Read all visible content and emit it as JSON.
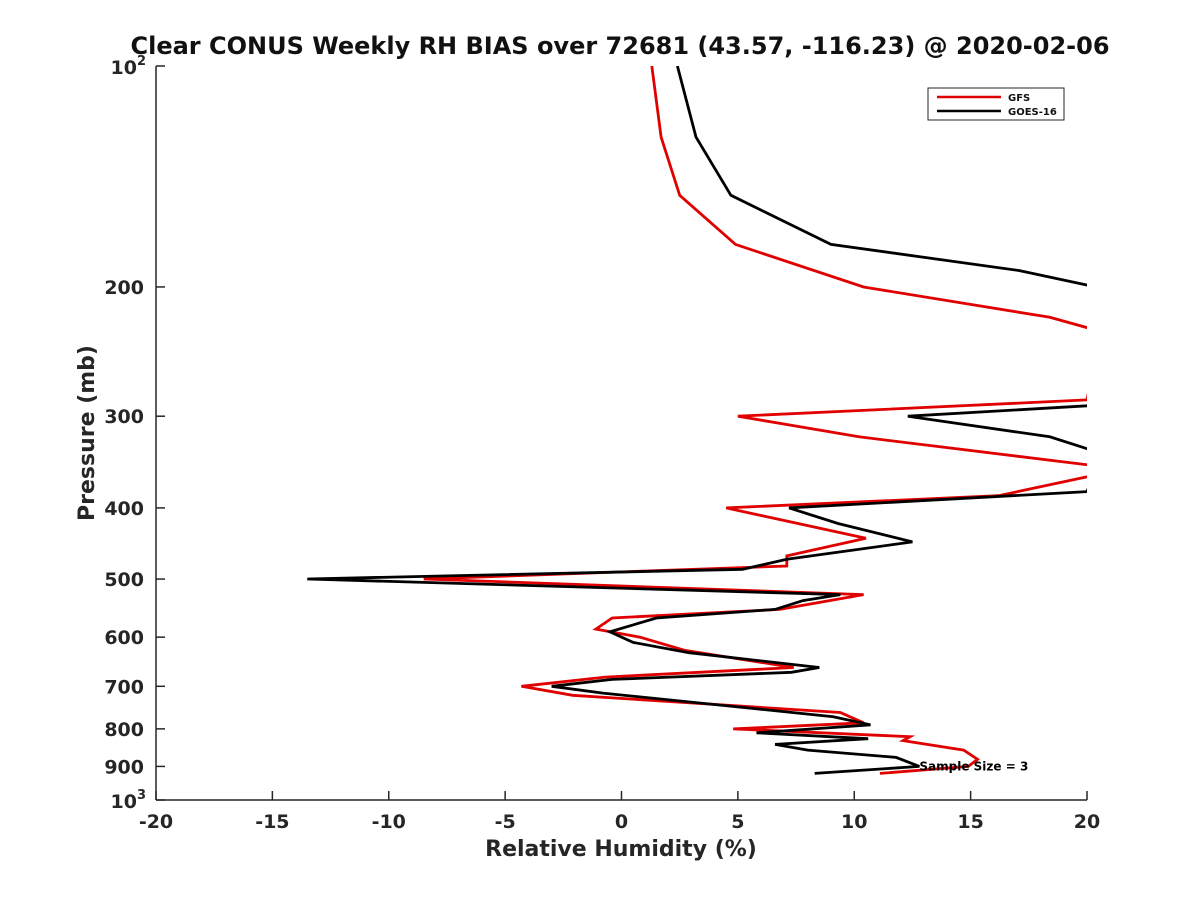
{
  "chart_data": {
    "type": "line",
    "title": "Clear CONUS Weekly RH BIAS over 72681 (43.57, -116.23) @ 2020-02-06",
    "xlabel": "Relative Humidity (%)",
    "ylabel": "Pressure (mb)",
    "xlim": [
      -20,
      20
    ],
    "ylim": [
      100,
      1000
    ],
    "y_scale": "log",
    "y_reversed": true,
    "grid": false,
    "legend_position": "top-right",
    "x_ticks": [
      "-20",
      "-15",
      "-10",
      "-5",
      "0",
      "5",
      "10",
      "15",
      "20"
    ],
    "y_ticks": [
      {
        "value": 100,
        "base": "10",
        "exp": "2"
      },
      {
        "value": 200,
        "label": "200"
      },
      {
        "value": 300,
        "label": "300"
      },
      {
        "value": 400,
        "label": "400"
      },
      {
        "value": 500,
        "label": "500"
      },
      {
        "value": 600,
        "label": "600"
      },
      {
        "value": 700,
        "label": "700"
      },
      {
        "value": 800,
        "label": "800"
      },
      {
        "value": 900,
        "label": "900"
      },
      {
        "value": 1000,
        "base": "10",
        "exp": "3"
      }
    ],
    "annotation": {
      "text": "Sample Size = 3",
      "x": 12.8,
      "y": 900
    },
    "series": [
      {
        "name": "GFS",
        "color": "#e00000",
        "points": [
          [
            1.3,
            100
          ],
          [
            1.7,
            125
          ],
          [
            2.5,
            150
          ],
          [
            4.9,
            175
          ],
          [
            10.4,
            200
          ],
          [
            18.4,
            220
          ],
          [
            20.6,
            230
          ],
          [
            20.0,
            285
          ],
          [
            5.0,
            300
          ],
          [
            10.2,
            320
          ],
          [
            20.2,
            350
          ],
          [
            20.5,
            360
          ],
          [
            16.2,
            385
          ],
          [
            4.5,
            400
          ],
          [
            10.5,
            440
          ],
          [
            7.1,
            465
          ],
          [
            7.1,
            480
          ],
          [
            -8.5,
            500
          ],
          [
            10.4,
            525
          ],
          [
            6.8,
            550
          ],
          [
            -0.4,
            565
          ],
          [
            -1.1,
            585
          ],
          [
            0.8,
            600
          ],
          [
            2.7,
            625
          ],
          [
            7.4,
            660
          ],
          [
            -0.7,
            680
          ],
          [
            -4.3,
            700
          ],
          [
            -2.1,
            720
          ],
          [
            9.4,
            760
          ],
          [
            10.4,
            785
          ],
          [
            4.8,
            800
          ],
          [
            12.4,
            820
          ],
          [
            12.1,
            830
          ],
          [
            14.7,
            855
          ],
          [
            15.3,
            880
          ],
          [
            14.9,
            900
          ],
          [
            11.1,
            920
          ]
        ]
      },
      {
        "name": "GOES-16",
        "color": "#000000",
        "points": [
          [
            2.4,
            100
          ],
          [
            3.2,
            125
          ],
          [
            4.7,
            150
          ],
          [
            9.0,
            175
          ],
          [
            17.1,
            190
          ],
          [
            20.4,
            200
          ],
          [
            20.3,
            290
          ],
          [
            12.3,
            300
          ],
          [
            18.4,
            320
          ],
          [
            21.0,
            340
          ],
          [
            20.2,
            365
          ],
          [
            20.0,
            380
          ],
          [
            7.2,
            400
          ],
          [
            9.3,
            420
          ],
          [
            12.5,
            445
          ],
          [
            7.1,
            470
          ],
          [
            5.2,
            485
          ],
          [
            -13.5,
            500
          ],
          [
            9.4,
            525
          ],
          [
            7.8,
            535
          ],
          [
            6.6,
            550
          ],
          [
            1.5,
            565
          ],
          [
            -0.5,
            590
          ],
          [
            0.5,
            610
          ],
          [
            2.9,
            630
          ],
          [
            8.5,
            660
          ],
          [
            7.3,
            670
          ],
          [
            -0.4,
            685
          ],
          [
            -3.0,
            700
          ],
          [
            -0.8,
            715
          ],
          [
            9.1,
            770
          ],
          [
            10.7,
            790
          ],
          [
            5.8,
            810
          ],
          [
            10.6,
            825
          ],
          [
            6.6,
            840
          ],
          [
            8.0,
            855
          ],
          [
            11.8,
            875
          ],
          [
            12.8,
            900
          ],
          [
            8.3,
            920
          ]
        ]
      }
    ]
  }
}
